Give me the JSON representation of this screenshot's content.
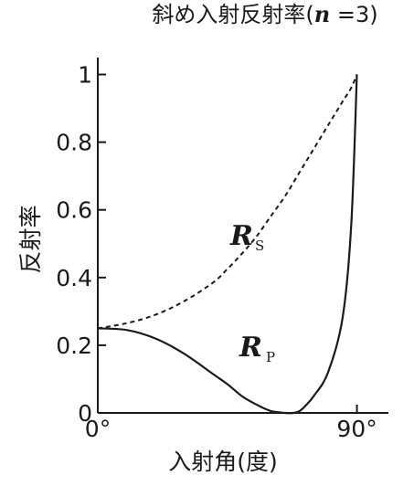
{
  "chart_data": {
    "type": "line",
    "title_prefix": "斜め入射反射率(",
    "title_var": "n",
    "title_suffix": " =3)",
    "xlabel": "入射角(度)",
    "ylabel": "反射率",
    "xlim": [
      0,
      93
    ],
    "ylim": [
      0,
      1.05
    ],
    "x_ticks": [
      {
        "value": 0,
        "label": "0°"
      },
      {
        "value": 90,
        "label": "90°"
      }
    ],
    "y_ticks": [
      {
        "value": 0,
        "label": "0"
      },
      {
        "value": 0.2,
        "label": "0.2"
      },
      {
        "value": 0.4,
        "label": "0.4"
      },
      {
        "value": 0.6,
        "label": "0.6"
      },
      {
        "value": 0.8,
        "label": "0.8"
      },
      {
        "value": 1,
        "label": "1"
      }
    ],
    "series": [
      {
        "key": "Rs",
        "name_main": "R",
        "name_sub": "S",
        "style": "dashed",
        "x": [
          0,
          10,
          20,
          30,
          40,
          45,
          50,
          55,
          60,
          65,
          70,
          75,
          80,
          85,
          88,
          90
        ],
        "values": [
          0.25,
          0.265,
          0.29,
          0.33,
          0.385,
          0.425,
          0.47,
          0.52,
          0.58,
          0.64,
          0.71,
          0.78,
          0.85,
          0.92,
          0.96,
          1.0
        ]
      },
      {
        "key": "Rp",
        "name_main": "R",
        "name_sub": "P",
        "style": "solid",
        "x": [
          0,
          10,
          20,
          30,
          40,
          45,
          50,
          55,
          60,
          65,
          68,
          70,
          72,
          75,
          80,
          85,
          88,
          90
        ],
        "values": [
          0.25,
          0.245,
          0.22,
          0.175,
          0.115,
          0.085,
          0.05,
          0.025,
          0.006,
          0.0,
          0.0,
          0.005,
          0.02,
          0.05,
          0.12,
          0.28,
          0.55,
          1.0
        ]
      }
    ]
  }
}
